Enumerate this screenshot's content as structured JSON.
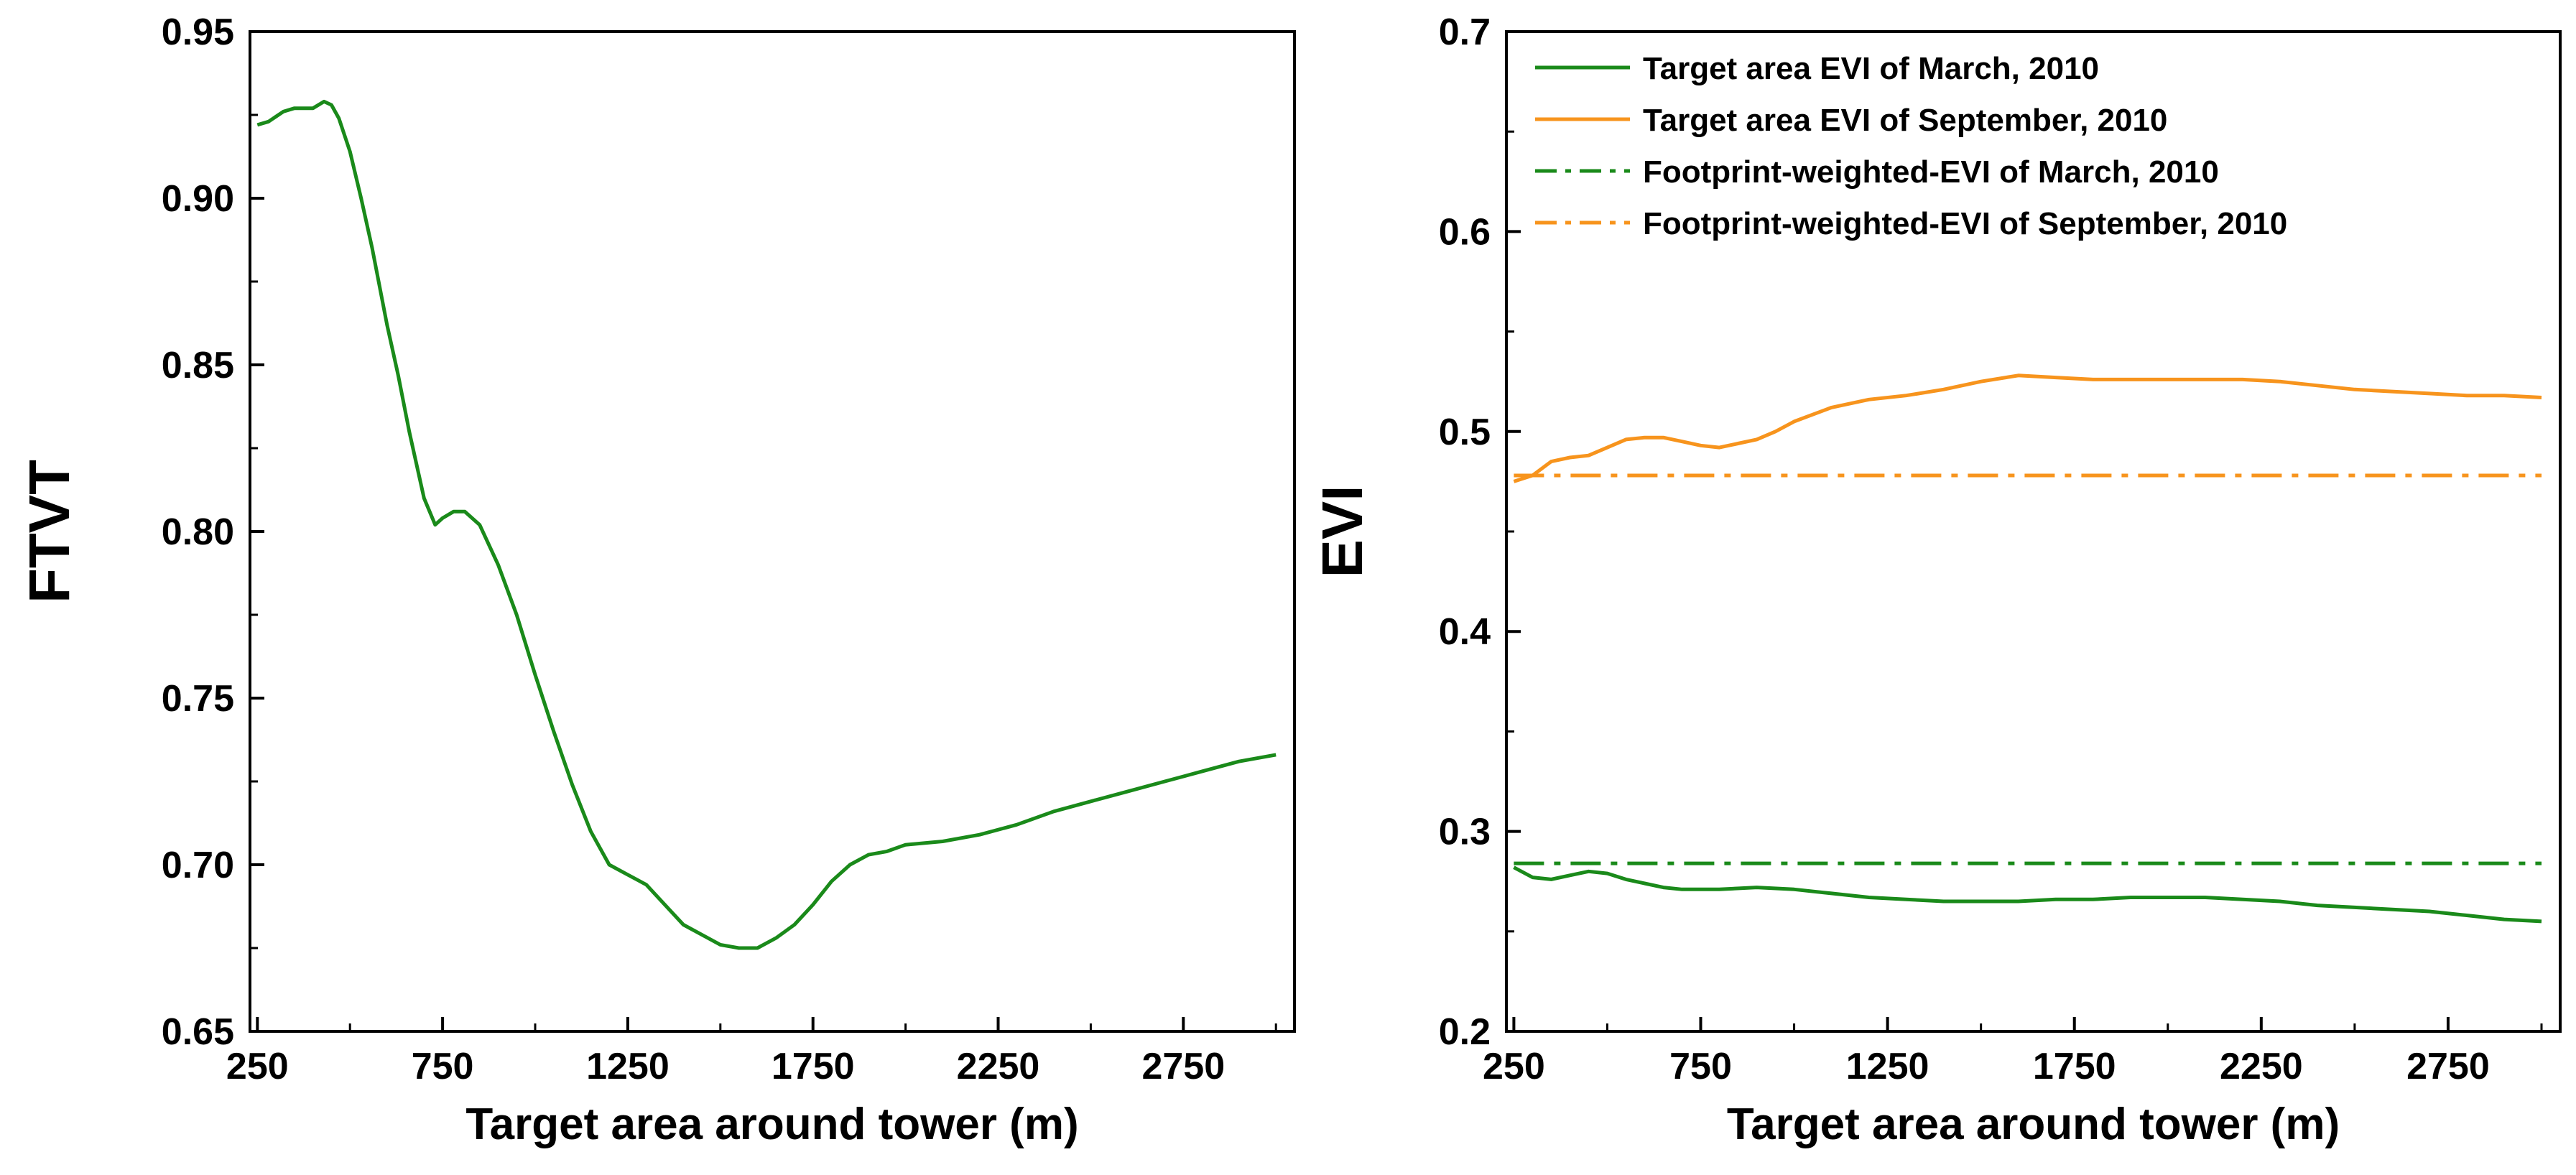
{
  "chart_data": [
    {
      "type": "line",
      "title": "",
      "xlabel": "Target area around tower (m)",
      "ylabel": "FTVT",
      "xlim": [
        230,
        3050
      ],
      "ylim": [
        0.65,
        0.95
      ],
      "x_ticks": [
        250,
        750,
        1250,
        1750,
        2250,
        2750
      ],
      "x_tick_labels": [
        "250",
        "750",
        "1250",
        "1750",
        "2250",
        "2750"
      ],
      "y_ticks": [
        0.65,
        0.7,
        0.75,
        0.8,
        0.85,
        0.9,
        0.95
      ],
      "y_tick_labels": [
        "0.65",
        "0.70",
        "0.75",
        "0.80",
        "0.85",
        "0.90",
        "0.95"
      ],
      "grid": false,
      "series": [
        {
          "name": "FTVT",
          "color": "#1a8a1a",
          "dash": "solid",
          "x": [
            250,
            280,
            320,
            350,
            400,
            430,
            450,
            470,
            500,
            530,
            560,
            600,
            630,
            660,
            700,
            730,
            750,
            780,
            810,
            850,
            900,
            950,
            1000,
            1050,
            1100,
            1150,
            1200,
            1250,
            1300,
            1350,
            1400,
            1450,
            1500,
            1550,
            1600,
            1650,
            1700,
            1750,
            1800,
            1850,
            1900,
            1950,
            2000,
            2100,
            2200,
            2300,
            2400,
            2500,
            2600,
            2700,
            2800,
            2900,
            3000
          ],
          "values": [
            0.922,
            0.923,
            0.926,
            0.927,
            0.927,
            0.929,
            0.928,
            0.924,
            0.914,
            0.9,
            0.885,
            0.862,
            0.847,
            0.83,
            0.81,
            0.802,
            0.804,
            0.806,
            0.806,
            0.802,
            0.79,
            0.775,
            0.757,
            0.74,
            0.724,
            0.71,
            0.7,
            0.697,
            0.694,
            0.688,
            0.682,
            0.679,
            0.676,
            0.675,
            0.675,
            0.678,
            0.682,
            0.688,
            0.695,
            0.7,
            0.703,
            0.704,
            0.706,
            0.707,
            0.709,
            0.712,
            0.716,
            0.719,
            0.722,
            0.725,
            0.728,
            0.731,
            0.733
          ]
        }
      ]
    },
    {
      "type": "line",
      "title": "",
      "xlabel": "Target area around tower (m)",
      "ylabel": "EVI",
      "xlim": [
        230,
        3050
      ],
      "ylim": [
        0.2,
        0.7
      ],
      "x_ticks": [
        250,
        750,
        1250,
        1750,
        2250,
        2750
      ],
      "x_tick_labels": [
        "250",
        "750",
        "1250",
        "1750",
        "2250",
        "2750"
      ],
      "y_ticks": [
        0.2,
        0.3,
        0.4,
        0.5,
        0.6,
        0.7
      ],
      "y_tick_labels": [
        "0.2",
        "0.3",
        "0.4",
        "0.5",
        "0.6",
        "0.7"
      ],
      "grid": false,
      "legend_position": "top-left",
      "series": [
        {
          "name": "Target area EVI of March, 2010",
          "color": "#1a8a1a",
          "dash": "solid",
          "x": [
            250,
            300,
            350,
            400,
            450,
            500,
            550,
            600,
            650,
            700,
            800,
            900,
            1000,
            1100,
            1200,
            1300,
            1400,
            1500,
            1600,
            1700,
            1800,
            1900,
            2000,
            2100,
            2200,
            2300,
            2400,
            2500,
            2600,
            2700,
            2800,
            2900,
            3000
          ],
          "values": [
            0.282,
            0.277,
            0.276,
            0.278,
            0.28,
            0.279,
            0.276,
            0.274,
            0.272,
            0.271,
            0.271,
            0.272,
            0.271,
            0.269,
            0.267,
            0.266,
            0.265,
            0.265,
            0.265,
            0.266,
            0.266,
            0.267,
            0.267,
            0.267,
            0.266,
            0.265,
            0.263,
            0.262,
            0.261,
            0.26,
            0.258,
            0.256,
            0.255
          ]
        },
        {
          "name": "Target area EVI of September, 2010",
          "color": "#f7941d",
          "dash": "solid",
          "x": [
            250,
            300,
            350,
            400,
            450,
            500,
            550,
            600,
            650,
            700,
            750,
            800,
            850,
            900,
            950,
            1000,
            1100,
            1200,
            1300,
            1400,
            1500,
            1600,
            1700,
            1800,
            1900,
            2000,
            2100,
            2200,
            2300,
            2400,
            2500,
            2600,
            2700,
            2800,
            2900,
            3000
          ],
          "values": [
            0.475,
            0.478,
            0.485,
            0.487,
            0.488,
            0.492,
            0.496,
            0.497,
            0.497,
            0.495,
            0.493,
            0.492,
            0.494,
            0.496,
            0.5,
            0.505,
            0.512,
            0.516,
            0.518,
            0.521,
            0.525,
            0.528,
            0.527,
            0.526,
            0.526,
            0.526,
            0.526,
            0.526,
            0.525,
            0.523,
            0.521,
            0.52,
            0.519,
            0.518,
            0.518,
            0.517
          ]
        },
        {
          "name": "Footprint-weighted-EVI of March, 2010",
          "color": "#1a8a1a",
          "dash": "dashdot",
          "x": [
            250,
            3000
          ],
          "values": [
            0.284,
            0.284
          ]
        },
        {
          "name": "Footprint-weighted-EVI of September, 2010",
          "color": "#f7941d",
          "dash": "dashdot",
          "x": [
            250,
            3000
          ],
          "values": [
            0.478,
            0.478
          ]
        }
      ]
    }
  ]
}
